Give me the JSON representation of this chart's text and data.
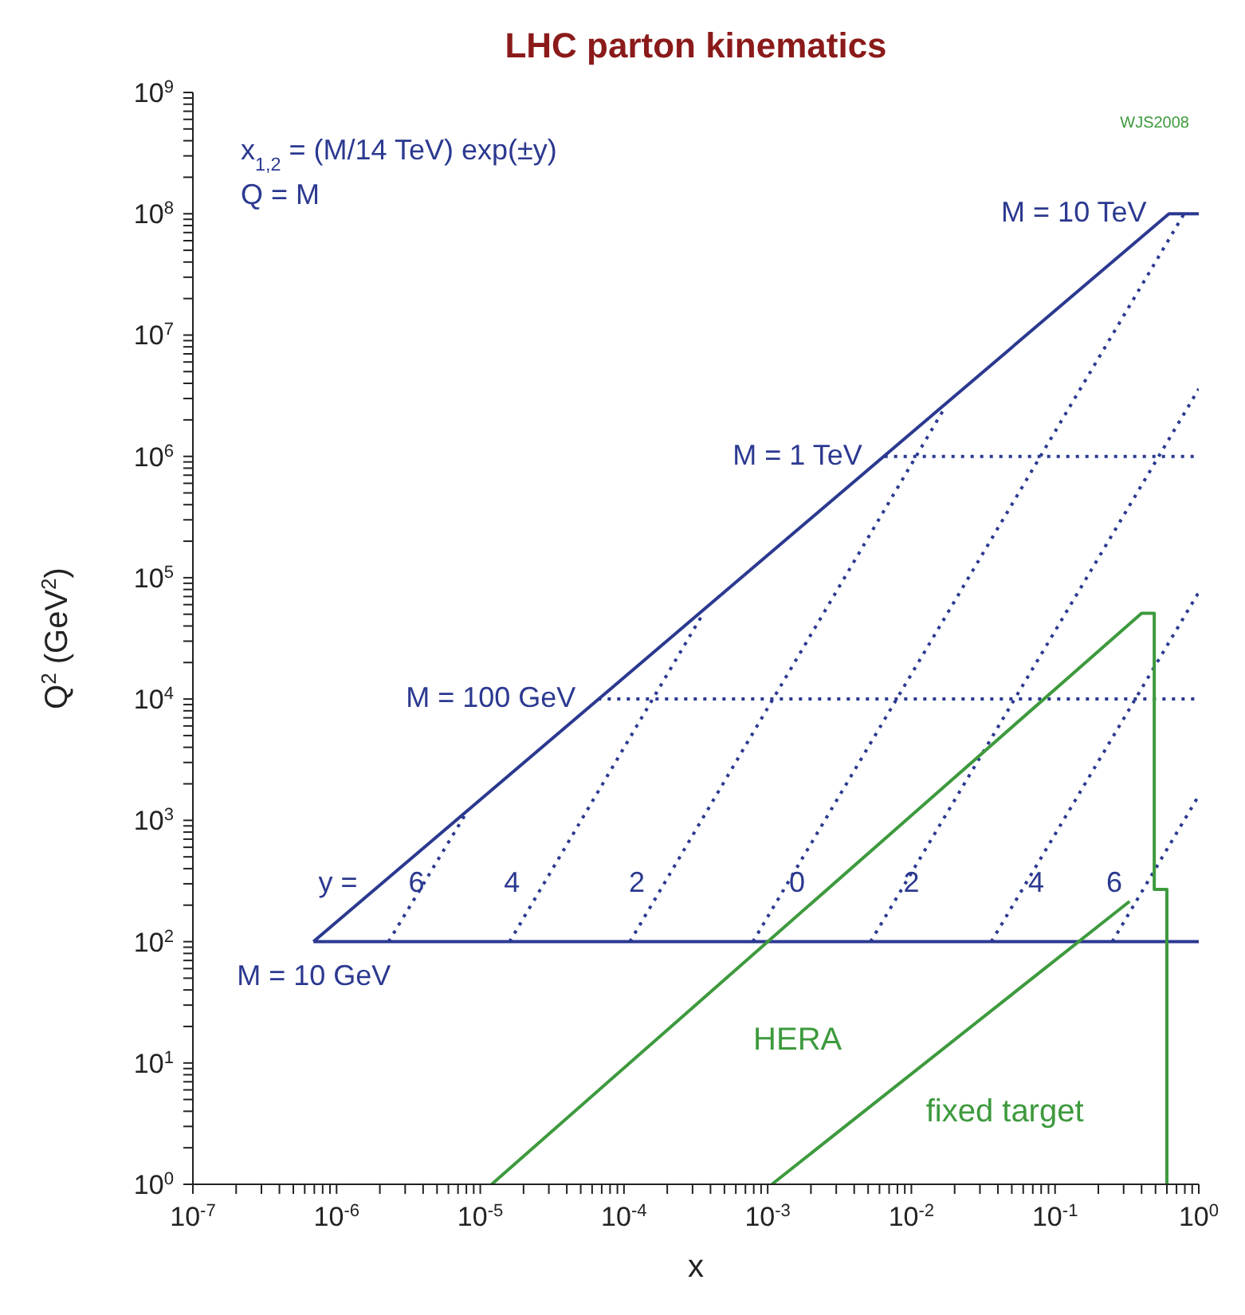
{
  "chart_data": {
    "type": "line",
    "title": "LHC parton kinematics",
    "xlabel": "x",
    "ylabel": "Q$^{2}$  (GeV$^{2}$)",
    "log": "xy",
    "line_style": "solid",
    "xlim": [
      1e-07,
      1
    ],
    "ylim": [
      1,
      1000000000.0
    ],
    "xticks": [
      {
        "value": 1e-07,
        "label": "10$^{-7}$"
      },
      {
        "value": 2e-07,
        "label": null
      },
      {
        "value": 3e-07,
        "label": null
      },
      {
        "value": 4e-07,
        "label": null
      },
      {
        "value": 5e-07,
        "label": null
      },
      {
        "value": 6e-07,
        "label": null
      },
      {
        "value": 7e-07,
        "label": null
      },
      {
        "value": 8e-07,
        "label": null
      },
      {
        "value": 9e-07,
        "label": null
      },
      {
        "value": 1e-06,
        "label": "10$^{-6}$"
      },
      {
        "value": 2e-06,
        "label": null
      },
      {
        "value": 3e-06,
        "label": null
      },
      {
        "value": 4e-06,
        "label": null
      },
      {
        "value": 5e-06,
        "label": null
      },
      {
        "value": 6e-06,
        "label": null
      },
      {
        "value": 7e-06,
        "label": null
      },
      {
        "value": 8e-06,
        "label": null
      },
      {
        "value": 9e-06,
        "label": null
      },
      {
        "value": 1e-05,
        "label": "10$^{-5}$"
      },
      {
        "value": 2e-05,
        "label": null
      },
      {
        "value": 3e-05,
        "label": null
      },
      {
        "value": 4e-05,
        "label": null
      },
      {
        "value": 5e-05,
        "label": null
      },
      {
        "value": 6e-05,
        "label": null
      },
      {
        "value": 7e-05,
        "label": null
      },
      {
        "value": 8e-05,
        "label": null
      },
      {
        "value": 9e-05,
        "label": null
      },
      {
        "value": 0.0001,
        "label": "10$^{-4}$"
      },
      {
        "value": 0.0002,
        "label": null
      },
      {
        "value": 0.0003,
        "label": null
      },
      {
        "value": 0.0004,
        "label": null
      },
      {
        "value": 0.0005,
        "label": null
      },
      {
        "value": 0.0006,
        "label": null
      },
      {
        "value": 0.0007,
        "label": null
      },
      {
        "value": 0.0008,
        "label": null
      },
      {
        "value": 0.0009,
        "label": null
      },
      {
        "value": 0.001,
        "label": "10$^{-3}$"
      },
      {
        "value": 0.002,
        "label": null
      },
      {
        "value": 0.003,
        "label": null
      },
      {
        "value": 0.004,
        "label": null
      },
      {
        "value": 0.005,
        "label": null
      },
      {
        "value": 0.006,
        "label": null
      },
      {
        "value": 0.007,
        "label": null
      },
      {
        "value": 0.008,
        "label": null
      },
      {
        "value": 0.009,
        "label": null
      },
      {
        "value": 0.01,
        "label": "10$^{-2}$"
      },
      {
        "value": 0.02,
        "label": null
      },
      {
        "value": 0.03,
        "label": null
      },
      {
        "value": 0.04,
        "label": null
      },
      {
        "value": 0.05,
        "label": null
      },
      {
        "value": 0.06,
        "label": null
      },
      {
        "value": 0.07,
        "label": null
      },
      {
        "value": 0.08,
        "label": null
      },
      {
        "value": 0.09,
        "label": null
      },
      {
        "value": 0.1,
        "label": "10$^{-1}$"
      },
      {
        "value": 0.2,
        "label": null
      },
      {
        "value": 0.3,
        "label": null
      },
      {
        "value": 0.4,
        "label": null
      },
      {
        "value": 0.5,
        "label": null
      },
      {
        "value": 0.6,
        "label": null
      },
      {
        "value": 0.7,
        "label": null
      },
      {
        "value": 0.8,
        "label": null
      },
      {
        "value": 0.9,
        "label": null
      },
      {
        "value": 1,
        "label": "10$^{0}$"
      }
    ],
    "yticks": [
      {
        "value": 1,
        "label": "10$^{0}$"
      },
      {
        "value": 2,
        "label": null
      },
      {
        "value": 3,
        "label": null
      },
      {
        "value": 4,
        "label": null
      },
      {
        "value": 5,
        "label": null
      },
      {
        "value": 6,
        "label": null
      },
      {
        "value": 7,
        "label": null
      },
      {
        "value": 8,
        "label": null
      },
      {
        "value": 9,
        "label": null
      },
      {
        "value": 10,
        "label": "10$^{1}$"
      },
      {
        "value": 20,
        "label": null
      },
      {
        "value": 30,
        "label": null
      },
      {
        "value": 40,
        "label": null
      },
      {
        "value": 50,
        "label": null
      },
      {
        "value": 60,
        "label": null
      },
      {
        "value": 70,
        "label": null
      },
      {
        "value": 80,
        "label": null
      },
      {
        "value": 90,
        "label": null
      },
      {
        "value": 100,
        "label": "10$^{2}$"
      },
      {
        "value": 200,
        "label": null
      },
      {
        "value": 300,
        "label": null
      },
      {
        "value": 400,
        "label": null
      },
      {
        "value": 500,
        "label": null
      },
      {
        "value": 600,
        "label": null
      },
      {
        "value": 700,
        "label": null
      },
      {
        "value": 800,
        "label": null
      },
      {
        "value": 900,
        "label": null
      },
      {
        "value": 1000.0,
        "label": "10$^{3}$"
      },
      {
        "value": 2000.0,
        "label": null
      },
      {
        "value": 3000.0,
        "label": null
      },
      {
        "value": 4000.0,
        "label": null
      },
      {
        "value": 5000.0,
        "label": null
      },
      {
        "value": 6000.0,
        "label": null
      },
      {
        "value": 7000.0,
        "label": null
      },
      {
        "value": 8000.0,
        "label": null
      },
      {
        "value": 9000.0,
        "label": null
      },
      {
        "value": 10000.0,
        "label": "10$^{4}$"
      },
      {
        "value": 20000.0,
        "label": null
      },
      {
        "value": 30000.0,
        "label": null
      },
      {
        "value": 40000.0,
        "label": null
      },
      {
        "value": 50000.0,
        "label": null
      },
      {
        "value": 60000.0,
        "label": null
      },
      {
        "value": 70000.0,
        "label": null
      },
      {
        "value": 80000.0,
        "label": null
      },
      {
        "value": 90000.0,
        "label": null
      },
      {
        "value": 100000.0,
        "label": "10$^{5}$"
      },
      {
        "value": 200000.0,
        "label": null
      },
      {
        "value": 300000.0,
        "label": null
      },
      {
        "value": 400000.0,
        "label": null
      },
      {
        "value": 500000.0,
        "label": null
      },
      {
        "value": 600000.0,
        "label": null
      },
      {
        "value": 700000.0,
        "label": null
      },
      {
        "value": 800000.0,
        "label": null
      },
      {
        "value": 900000.0,
        "label": null
      },
      {
        "value": 1000000.0,
        "label": "10$^{6}$"
      },
      {
        "value": 2000000.0,
        "label": null
      },
      {
        "value": 3000000.0,
        "label": null
      },
      {
        "value": 4000000.0,
        "label": null
      },
      {
        "value": 5000000.0,
        "label": null
      },
      {
        "value": 6000000.0,
        "label": null
      },
      {
        "value": 7000000.0,
        "label": null
      },
      {
        "value": 8000000.0,
        "label": null
      },
      {
        "value": 9000000.0,
        "label": null
      },
      {
        "value": 10000000.0,
        "label": "10$^{7}$"
      },
      {
        "value": 20000000.0,
        "label": null
      },
      {
        "value": 30000000.0,
        "label": null
      },
      {
        "value": 40000000.0,
        "label": null
      },
      {
        "value": 50000000.0,
        "label": null
      },
      {
        "value": 60000000.0,
        "label": null
      },
      {
        "value": 70000000.0,
        "label": null
      },
      {
        "value": 80000000.0,
        "label": null
      },
      {
        "value": 90000000.0,
        "label": null
      },
      {
        "value": 100000000.0,
        "label": "10$^{8}$"
      },
      {
        "value": 200000000.0,
        "label": null
      },
      {
        "value": 300000000.0,
        "label": null
      },
      {
        "value": 400000000.0,
        "label": null
      },
      {
        "value": 500000000.0,
        "label": null
      },
      {
        "value": 600000000.0,
        "label": null
      },
      {
        "value": 700000000.0,
        "label": null
      },
      {
        "value": 800000000.0,
        "label": null
      },
      {
        "value": 900000000.0,
        "label": null
      },
      {
        "value": 1000000000.0,
        "label": "10$^{9}$"
      }
    ],
    "series": [
      {
        "color": "#2b3990",
        "x": [
          6.9e-07,
          0.62,
          1
        ],
        "values": [
          100,
          100000000.0,
          100000000.0
        ]
      },
      {
        "color": "#2b3990",
        "x": [
          6.9e-07,
          1
        ],
        "values": [
          100,
          100
        ]
      },
      {
        "color": "#2b3990",
        "line_style": "dotted",
        "x": [
          2.3e-06,
          7.8e-06
        ],
        "values": [
          100,
          1100.0
        ]
      },
      {
        "color": "#2b3990",
        "line_style": "dotted",
        "x": [
          1.6e-05,
          0.00036
        ],
        "values": [
          100,
          52000.0
        ]
      },
      {
        "color": "#2b3990",
        "line_style": "dotted",
        "x": [
          0.00011,
          0.017
        ],
        "values": [
          100,
          2500000.0
        ]
      },
      {
        "color": "#2b3990",
        "line_style": "dotted",
        "x": [
          0.00079,
          0.79
        ],
        "values": [
          100,
          100000000.0
        ]
      },
      {
        "color": "#2b3990",
        "line_style": "dotted",
        "x": [
          0.0052,
          1
        ],
        "values": [
          100,
          3600000.0
        ]
      },
      {
        "color": "#2b3990",
        "line_style": "dotted",
        "x": [
          0.036,
          1
        ],
        "values": [
          100,
          76000.0
        ]
      },
      {
        "color": "#2b3990",
        "line_style": "dotted",
        "x": [
          0.25,
          1
        ],
        "values": [
          100,
          1600.0
        ]
      },
      {
        "color": "#2b3990",
        "line_style": "dotted",
        "x": [
          0.0065,
          1
        ],
        "values": [
          1000000.0,
          1000000.0
        ]
      },
      {
        "color": "#2b3990",
        "line_style": "dotted",
        "x": [
          6.6e-05,
          1
        ],
        "values": [
          10000.0,
          10000.0
        ]
      },
      {
        "name": "HERA",
        "color": "#3d9a3d",
        "x": [
          1.2e-05,
          0.4,
          0.49,
          0.49,
          0.6,
          0.6
        ],
        "values": [
          1,
          51000.0,
          51000.0,
          270,
          270,
          1
        ]
      },
      {
        "name": "fixed target",
        "color": "#3d9a3d",
        "x": [
          0.00107,
          0.33
        ],
        "values": [
          1,
          215
        ]
      }
    ],
    "annotations": [
      "x$_{1,2}$ = (M/14 TeV) exp(±y)",
      "Q = M",
      {
        "text": "M = 10 TeV",
        "x": 0.62,
        "y": 100000000.0
      },
      {
        "text": "M = 1 TeV",
        "x": 0.0065,
        "y": 1000000.0
      },
      {
        "text": "M = 100 GeV",
        "x": 6.6e-05,
        "y": 10000.0
      },
      {
        "text": "M = 10 GeV",
        "x": 6.9e-07,
        "y": 100
      },
      {
        "text": "y =",
        "x": 2e-06,
        "y": 300
      },
      {
        "text": "6",
        "x": 3.6e-06,
        "y": 300
      },
      {
        "text": "4",
        "x": 2.7e-05,
        "y": 300
      },
      {
        "text": "2",
        "x": 0.0002,
        "y": 300
      },
      {
        "text": "0",
        "x": 0.0016,
        "y": 300
      },
      {
        "text": "2",
        "x": 0.01,
        "y": 300
      },
      {
        "text": "4",
        "x": 0.074,
        "y": 300
      },
      {
        "text": "6",
        "x": 0.42,
        "y": 300
      },
      "WJS2008"
    ]
  }
}
